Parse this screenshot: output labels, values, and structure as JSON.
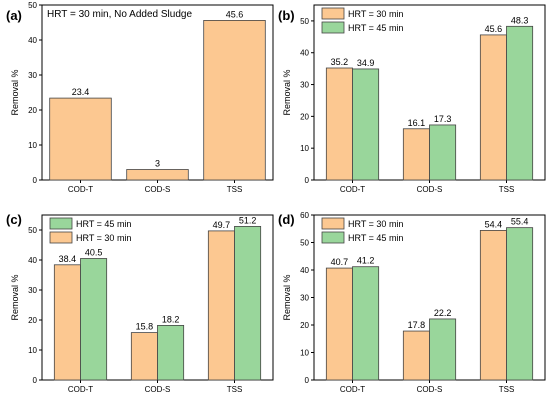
{
  "colors": {
    "orange": "#fcc891",
    "green": "#99d69b",
    "stroke": "#444444"
  },
  "chart_data": [
    {
      "id": "a",
      "panel_label": "(a)",
      "type": "bar",
      "ylabel": "Removal %",
      "ylim": [
        0,
        50
      ],
      "yticks": [
        0,
        10,
        20,
        30,
        40,
        50
      ],
      "categories": [
        "COD-T",
        "COD-S",
        "TSS"
      ],
      "annotation": "HRT = 30 min, No Added Sludge",
      "legend": null,
      "series": [
        {
          "color_key": "orange",
          "values": [
            23.4,
            3,
            45.6
          ],
          "labels": [
            "23.4",
            "3",
            "45.6"
          ]
        }
      ]
    },
    {
      "id": "b",
      "panel_label": "(b)",
      "type": "bar",
      "ylabel": "Removal %",
      "ylim": [
        0,
        55
      ],
      "yticks": [
        0,
        10,
        20,
        30,
        40,
        50
      ],
      "categories": [
        "COD-T",
        "COD-S",
        "TSS"
      ],
      "annotation": "",
      "legend": "top-left",
      "series": [
        {
          "name": "HRT = 30 min",
          "color_key": "orange",
          "values": [
            35.2,
            16.1,
            45.6
          ],
          "labels": [
            "35.2",
            "16.1",
            "45.6"
          ]
        },
        {
          "name": "HRT = 45 min",
          "color_key": "green",
          "values": [
            34.9,
            17.3,
            48.3
          ],
          "labels": [
            "34.9",
            "17.3",
            "48.3"
          ]
        }
      ]
    },
    {
      "id": "c",
      "panel_label": "(c)",
      "type": "bar",
      "ylabel": "Removal %",
      "ylim": [
        0,
        55
      ],
      "yticks": [
        0,
        10,
        20,
        30,
        40,
        50
      ],
      "categories": [
        "COD-T",
        "COD-S",
        "TSS"
      ],
      "annotation": "",
      "legend": "top-left",
      "legend_order": [
        1,
        0
      ],
      "series": [
        {
          "name": "HRT = 30 min",
          "color_key": "orange",
          "values": [
            38.4,
            15.8,
            49.7
          ],
          "labels": [
            "38.4",
            "15.8",
            "49.7"
          ]
        },
        {
          "name": "HRT = 45 min",
          "color_key": "green",
          "values": [
            40.5,
            18.2,
            51.2
          ],
          "labels": [
            "40.5",
            "18.2",
            "51.2"
          ]
        }
      ]
    },
    {
      "id": "d",
      "panel_label": "(d)",
      "type": "bar",
      "ylabel": "Removal %",
      "ylim": [
        0,
        60
      ],
      "yticks": [
        0,
        10,
        20,
        30,
        40,
        50,
        60
      ],
      "categories": [
        "COD-T",
        "COD-S",
        "TSS"
      ],
      "annotation": "",
      "legend": "top-left",
      "series": [
        {
          "name": "HRT = 30 min",
          "color_key": "orange",
          "values": [
            40.7,
            17.8,
            54.4
          ],
          "labels": [
            "40.7",
            "17.8",
            "54.4"
          ]
        },
        {
          "name": "HRT = 45 min",
          "color_key": "green",
          "values": [
            41.2,
            22.2,
            55.4
          ],
          "labels": [
            "41.2",
            "22.2",
            "55.4"
          ]
        }
      ]
    }
  ]
}
